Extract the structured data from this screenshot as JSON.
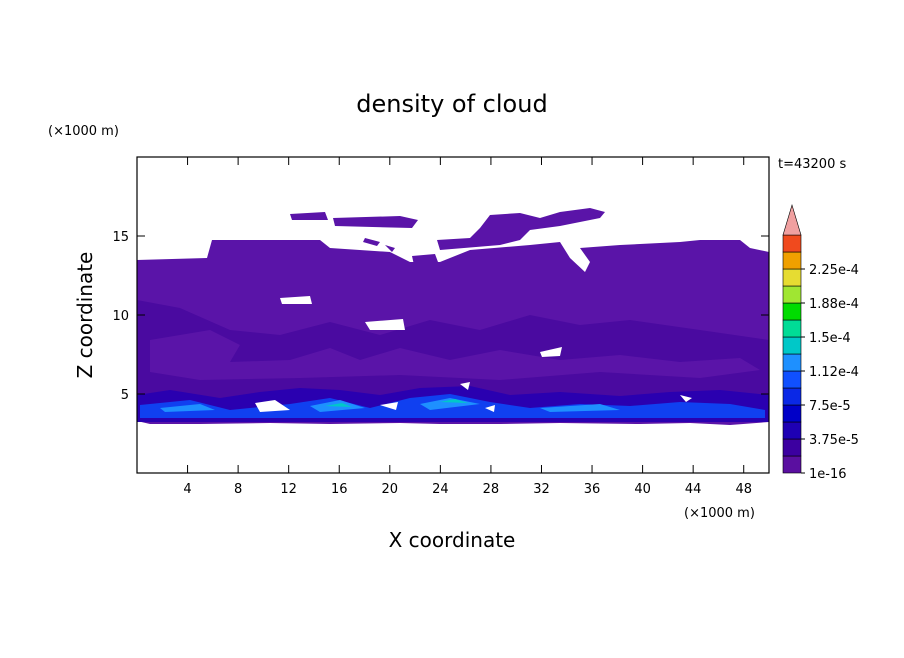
{
  "chart_data": {
    "type": "contour",
    "title": "density of cloud",
    "x_label": "X coordinate",
    "y_label": "Z coordinate",
    "x_unit": "(×1000 m)",
    "y_unit": "(×1000 m)",
    "time_label": "t=43200 s",
    "xlim": [
      0,
      50
    ],
    "ylim": [
      0,
      20
    ],
    "xticks": [
      4,
      8,
      12,
      16,
      20,
      24,
      28,
      32,
      36,
      40,
      44,
      48
    ],
    "yticks": [
      5,
      10,
      15
    ],
    "colorbar": {
      "ticks": [
        {
          "value": 1e-16,
          "label": "1e-16"
        },
        {
          "value": 3.75e-05,
          "label": "3.75e-5"
        },
        {
          "value": 7.5e-05,
          "label": "7.5e-5"
        },
        {
          "value": 0.000112,
          "label": "1.12e-4"
        },
        {
          "value": 0.00015,
          "label": "1.5e-4"
        },
        {
          "value": 0.000188,
          "label": "1.88e-4"
        },
        {
          "value": 0.000225,
          "label": "2.25e-4"
        }
      ],
      "colors": [
        "#5a0fa0",
        "#3c00a0",
        "#1e00b4",
        "#0000c8",
        "#0a28e6",
        "#1050ff",
        "#1e90ff",
        "#00c8c8",
        "#00dc96",
        "#00dc00",
        "#a0e632",
        "#e6dc32",
        "#f0a000",
        "#f04a1e"
      ],
      "over_color": "#f0a0a0"
    }
  }
}
